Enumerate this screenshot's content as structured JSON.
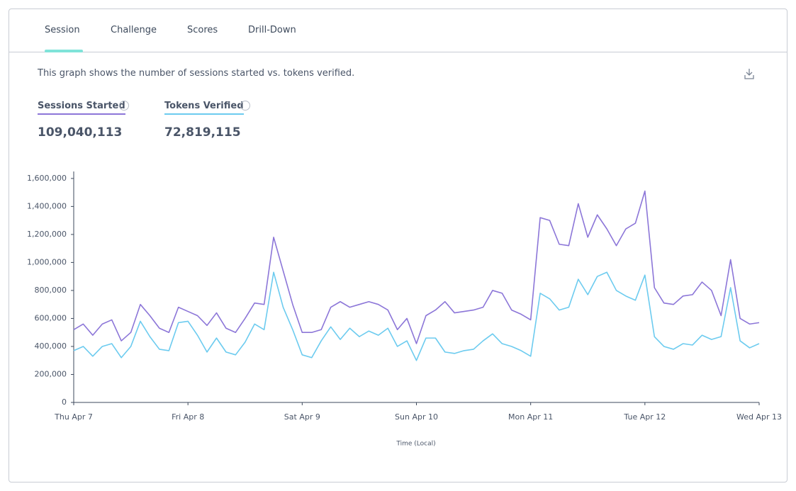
{
  "tabs": [
    "Session",
    "Challenge",
    "Scores",
    "Drill-Down"
  ],
  "description": "This graph shows the number of sessions started vs. tokens verified.",
  "chart_data": {
    "type": "line",
    "x_label": "Time (Local)",
    "categories": [
      "Thu Apr 7",
      null,
      null,
      null,
      null,
      null,
      null,
      null,
      null,
      null,
      null,
      null,
      "Fri Apr 8",
      null,
      null,
      null,
      null,
      null,
      null,
      null,
      null,
      null,
      null,
      null,
      "Sat Apr 9",
      null,
      null,
      null,
      null,
      null,
      null,
      null,
      null,
      null,
      null,
      null,
      "Sun Apr 10",
      null,
      null,
      null,
      null,
      null,
      null,
      null,
      null,
      null,
      null,
      null,
      "Mon Apr 11",
      null,
      null,
      null,
      null,
      null,
      null,
      null,
      null,
      null,
      null,
      null,
      "Tue Apr 12",
      null,
      null,
      null,
      null,
      null,
      null,
      null,
      null,
      null,
      null,
      null,
      "Wed Apr 13"
    ],
    "ylim": [
      0,
      1650000
    ],
    "yticks": [
      0,
      {
        "value": 200000,
        "label": "200,000"
      },
      {
        "value": 400000,
        "label": "400,000"
      },
      {
        "value": 600000,
        "label": "600,000"
      },
      {
        "value": 800000,
        "label": "800,000"
      },
      {
        "value": 1000000,
        "label": "1,000,000"
      },
      {
        "value": 1200000,
        "label": "1,200,000"
      },
      {
        "value": 1400000,
        "label": "1,400,000"
      },
      {
        "value": 1600000,
        "label": "1,600,000"
      }
    ],
    "series": [
      {
        "name": "Sessions Started",
        "total": "109,040,113",
        "color": "#8c76d8",
        "values": [
          520000,
          560000,
          480000,
          560000,
          590000,
          440000,
          500000,
          700000,
          620000,
          530000,
          500000,
          680000,
          650000,
          620000,
          550000,
          640000,
          530000,
          500000,
          600000,
          710000,
          700000,
          1180000,
          940000,
          700000,
          500000,
          500000,
          520000,
          680000,
          720000,
          680000,
          700000,
          720000,
          700000,
          660000,
          520000,
          600000,
          420000,
          620000,
          660000,
          720000,
          640000,
          650000,
          660000,
          680000,
          800000,
          780000,
          660000,
          630000,
          590000,
          1320000,
          1300000,
          1130000,
          1120000,
          1420000,
          1180000,
          1340000,
          1240000,
          1120000,
          1240000,
          1280000,
          1510000,
          820000,
          710000,
          700000,
          760000,
          770000,
          860000,
          800000,
          620000,
          1020000,
          600000,
          560000,
          570000
        ]
      },
      {
        "name": "Tokens Verified",
        "total": "72,819,115",
        "color": "#6ccbef",
        "values": [
          370000,
          400000,
          330000,
          400000,
          420000,
          320000,
          400000,
          580000,
          470000,
          380000,
          370000,
          570000,
          580000,
          480000,
          360000,
          460000,
          360000,
          340000,
          430000,
          560000,
          520000,
          930000,
          680000,
          520000,
          340000,
          320000,
          440000,
          540000,
          450000,
          530000,
          470000,
          510000,
          480000,
          530000,
          400000,
          440000,
          300000,
          460000,
          460000,
          360000,
          350000,
          370000,
          380000,
          440000,
          490000,
          420000,
          400000,
          370000,
          330000,
          780000,
          740000,
          660000,
          680000,
          880000,
          770000,
          900000,
          930000,
          800000,
          760000,
          730000,
          910000,
          470000,
          400000,
          380000,
          420000,
          410000,
          480000,
          450000,
          470000,
          820000,
          440000,
          390000,
          420000
        ]
      }
    ]
  }
}
